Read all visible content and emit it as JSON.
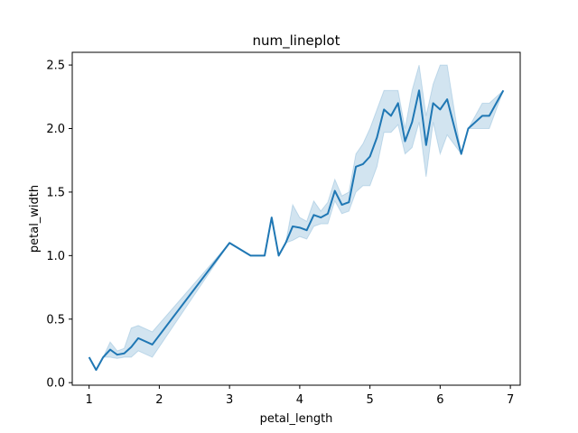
{
  "chart_data": {
    "type": "line",
    "title": "num_lineplot",
    "xlabel": "petal_length",
    "ylabel": "petal_width",
    "xlim": [
      0.76,
      7.14
    ],
    "ylim": [
      -0.02,
      2.6
    ],
    "xticks": [
      1,
      2,
      3,
      4,
      5,
      6,
      7
    ],
    "yticks": [
      0.0,
      0.5,
      1.0,
      1.5,
      2.0,
      2.5
    ],
    "line_color": "#1f77b4",
    "band_color": "#1f77b4",
    "grid": false,
    "series": [
      {
        "x": [
          1.0,
          1.1,
          1.2,
          1.3,
          1.4,
          1.5,
          1.6,
          1.7,
          1.9,
          3.0,
          3.3,
          3.5,
          3.6,
          3.7,
          3.8,
          3.9,
          4.0,
          4.1,
          4.2,
          4.3,
          4.4,
          4.5,
          4.6,
          4.7,
          4.8,
          4.9,
          5.0,
          5.1,
          5.2,
          5.3,
          5.4,
          5.5,
          5.6,
          5.7,
          5.8,
          5.9,
          6.0,
          6.1,
          6.3,
          6.4,
          6.6,
          6.7,
          6.9
        ],
        "y": [
          0.2,
          0.1,
          0.2,
          0.26,
          0.22,
          0.23,
          0.28,
          0.35,
          0.3,
          1.1,
          1.0,
          1.0,
          1.3,
          1.0,
          1.1,
          1.23,
          1.22,
          1.2,
          1.32,
          1.3,
          1.33,
          1.51,
          1.4,
          1.42,
          1.7,
          1.72,
          1.78,
          1.93,
          2.15,
          2.1,
          2.2,
          1.9,
          2.05,
          2.3,
          1.87,
          2.2,
          2.15,
          2.23,
          1.8,
          2.0,
          2.1,
          2.1,
          2.3
        ],
        "lo": [
          0.2,
          0.1,
          0.2,
          0.2,
          0.19,
          0.2,
          0.2,
          0.25,
          0.2,
          1.1,
          1.0,
          1.0,
          1.3,
          1.0,
          1.1,
          1.12,
          1.15,
          1.13,
          1.23,
          1.25,
          1.25,
          1.43,
          1.33,
          1.35,
          1.5,
          1.55,
          1.55,
          1.7,
          1.97,
          1.97,
          2.03,
          1.8,
          1.85,
          2.05,
          1.62,
          2.05,
          1.8,
          1.95,
          1.8,
          2.0,
          2.0,
          2.0,
          2.3
        ],
        "hi": [
          0.2,
          0.1,
          0.2,
          0.32,
          0.25,
          0.27,
          0.43,
          0.45,
          0.4,
          1.1,
          1.0,
          1.0,
          1.3,
          1.0,
          1.1,
          1.4,
          1.3,
          1.27,
          1.43,
          1.35,
          1.42,
          1.6,
          1.47,
          1.5,
          1.8,
          1.88,
          2.0,
          2.15,
          2.3,
          2.3,
          2.3,
          2.0,
          2.3,
          2.5,
          2.1,
          2.35,
          2.5,
          2.5,
          1.8,
          2.0,
          2.2,
          2.2,
          2.3
        ]
      }
    ]
  }
}
